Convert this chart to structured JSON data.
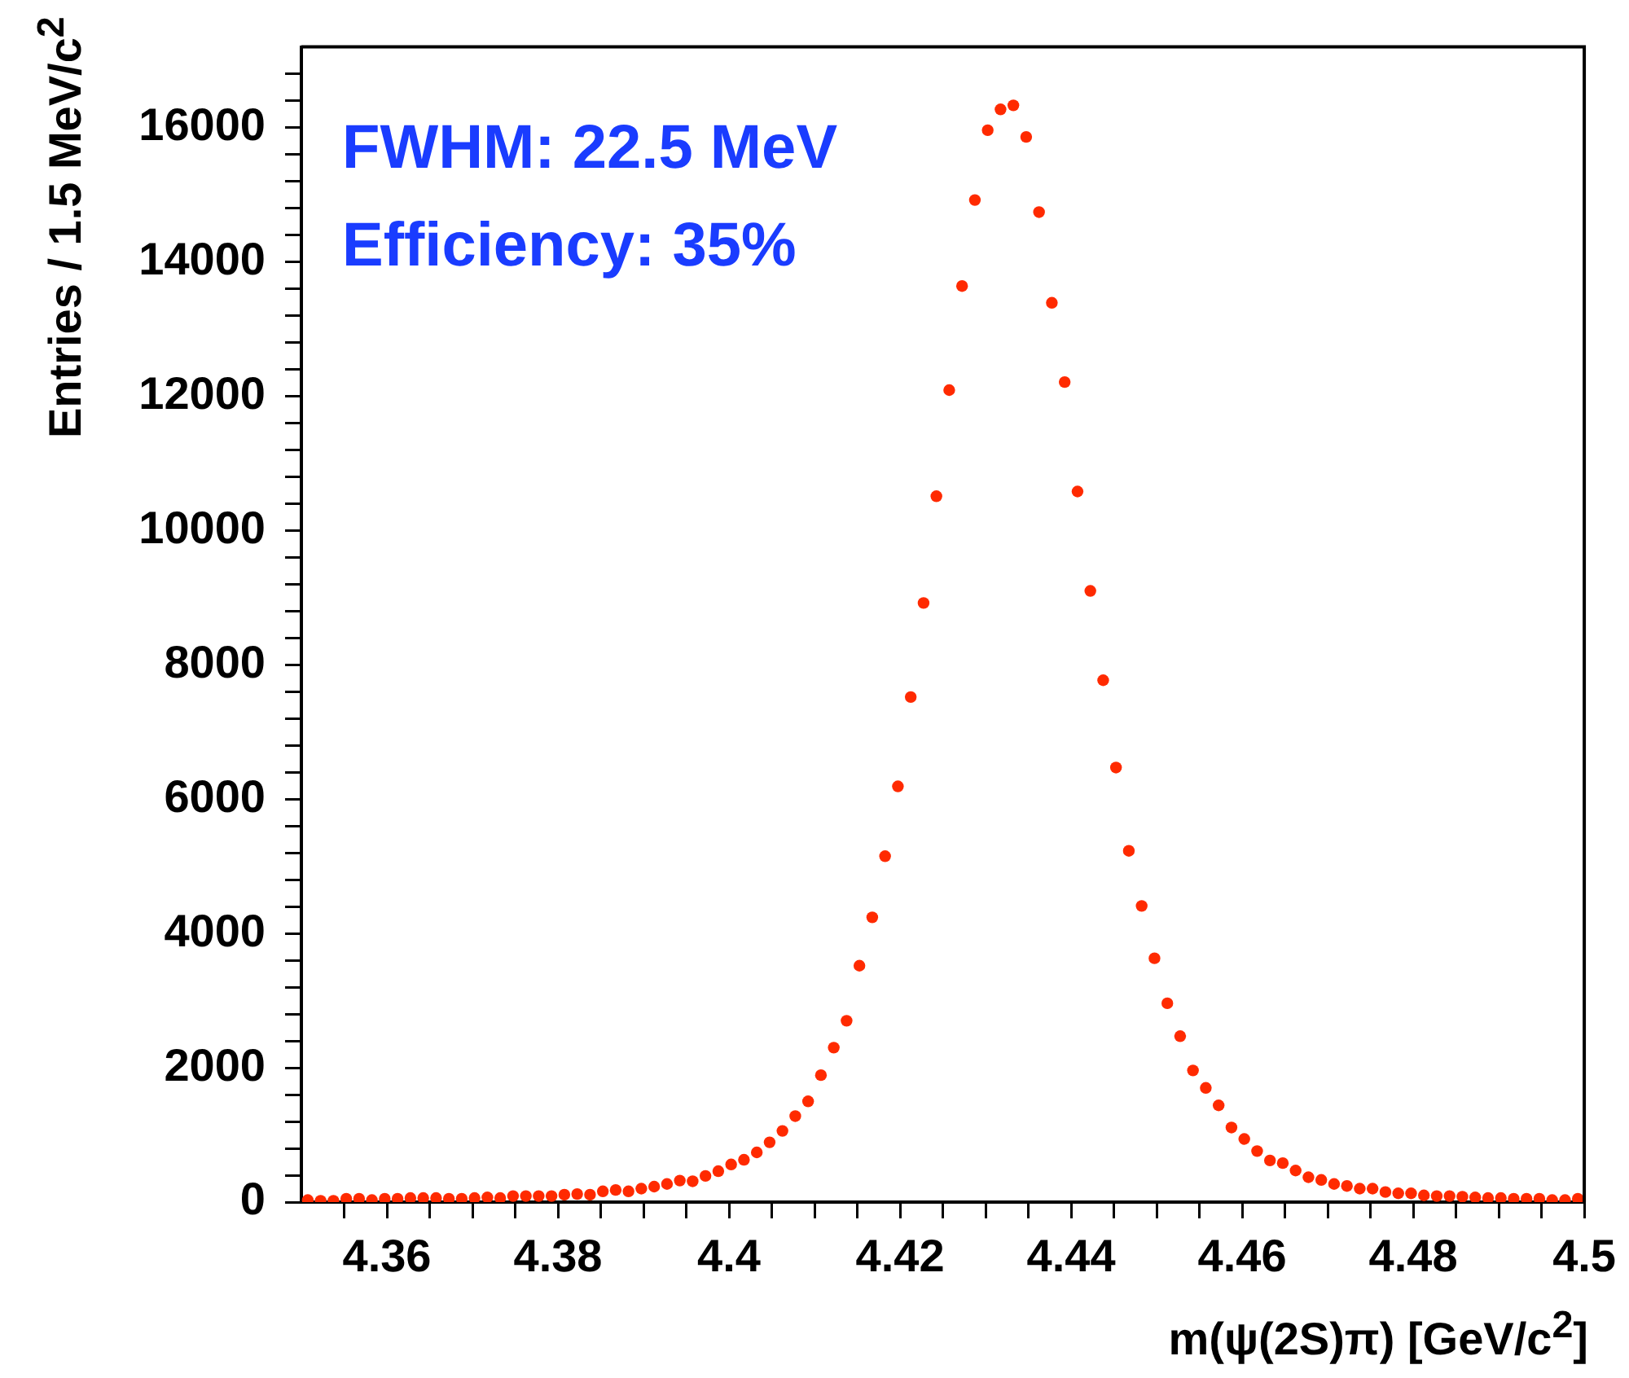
{
  "chart_data": {
    "type": "scatter",
    "xlabel": "m(ψ(2S)π) [GeV/c$^{2}$]",
    "ylabel": "Entries / 1.5 MeV/c$^{2}$",
    "annotations": [
      "FWHM: 22.5 MeV",
      "Efficiency: 35%"
    ],
    "marker": "circle",
    "legend": false,
    "grid": false,
    "xlim": [
      4.35,
      4.5
    ],
    "ylim": [
      0,
      17200
    ],
    "xticks": [
      {
        "value": 4.355,
        "label": null
      },
      4.36,
      {
        "value": 4.365,
        "label": null
      },
      {
        "value": 4.37,
        "label": null
      },
      {
        "value": 4.375,
        "label": null
      },
      4.38,
      {
        "value": 4.385,
        "label": null
      },
      {
        "value": 4.39,
        "label": null
      },
      {
        "value": 4.395,
        "label": null
      },
      4.4,
      {
        "value": 4.405,
        "label": null
      },
      {
        "value": 4.41,
        "label": null
      },
      {
        "value": 4.415,
        "label": null
      },
      4.42,
      {
        "value": 4.425,
        "label": null
      },
      {
        "value": 4.43,
        "label": null
      },
      {
        "value": 4.435,
        "label": null
      },
      4.44,
      {
        "value": 4.445,
        "label": null
      },
      {
        "value": 4.45,
        "label": null
      },
      {
        "value": 4.455,
        "label": null
      },
      4.46,
      {
        "value": 4.465,
        "label": null
      },
      {
        "value": 4.47,
        "label": null
      },
      {
        "value": 4.475,
        "label": null
      },
      4.48,
      {
        "value": 4.485,
        "label": null
      },
      {
        "value": 4.49,
        "label": null
      },
      {
        "value": 4.495,
        "label": null
      },
      4.5
    ],
    "yticks": [
      0,
      {
        "value": 400,
        "label": null
      },
      {
        "value": 800,
        "label": null
      },
      {
        "value": 1200,
        "label": null
      },
      {
        "value": 1600,
        "label": null
      },
      2000,
      {
        "value": 2400,
        "label": null
      },
      {
        "value": 2800,
        "label": null
      },
      {
        "value": 3200,
        "label": null
      },
      {
        "value": 3600,
        "label": null
      },
      4000,
      {
        "value": 4400,
        "label": null
      },
      {
        "value": 4800,
        "label": null
      },
      {
        "value": 5200,
        "label": null
      },
      {
        "value": 5600,
        "label": null
      },
      6000,
      {
        "value": 6400,
        "label": null
      },
      {
        "value": 6800,
        "label": null
      },
      {
        "value": 7200,
        "label": null
      },
      {
        "value": 7600,
        "label": null
      },
      8000,
      {
        "value": 8400,
        "label": null
      },
      {
        "value": 8800,
        "label": null
      },
      {
        "value": 9200,
        "label": null
      },
      {
        "value": 9600,
        "label": null
      },
      10000,
      {
        "value": 10400,
        "label": null
      },
      {
        "value": 10800,
        "label": null
      },
      {
        "value": 11200,
        "label": null
      },
      {
        "value": 11600,
        "label": null
      },
      12000,
      {
        "value": 12400,
        "label": null
      },
      {
        "value": 12800,
        "label": null
      },
      {
        "value": 13200,
        "label": null
      },
      {
        "value": 13600,
        "label": null
      },
      14000,
      {
        "value": 14400,
        "label": null
      },
      {
        "value": 14800,
        "label": null
      },
      {
        "value": 15200,
        "label": null
      },
      {
        "value": 15600,
        "label": null
      },
      16000,
      {
        "value": 16400,
        "label": null
      },
      {
        "value": 16800,
        "label": null
      }
    ],
    "series": [
      {
        "color": "#ff2a00",
        "x": [
          4.35075,
          4.35225,
          4.35375,
          4.35525,
          4.35675,
          4.35825,
          4.35975,
          4.36125,
          4.36275,
          4.36425,
          4.36575,
          4.36725,
          4.36875,
          4.37025,
          4.37175,
          4.37325,
          4.37475,
          4.37625,
          4.37775,
          4.37925,
          4.38075,
          4.38225,
          4.38375,
          4.38525,
          4.38675,
          4.38825,
          4.38975,
          4.39125,
          4.39275,
          4.39425,
          4.39575,
          4.39725,
          4.39875,
          4.40025,
          4.40175,
          4.40325,
          4.40475,
          4.40625,
          4.40775,
          4.40925,
          4.41075,
          4.41225,
          4.41375,
          4.41525,
          4.41675,
          4.41825,
          4.41975,
          4.42125,
          4.42275,
          4.42425,
          4.42575,
          4.42725,
          4.42875,
          4.43025,
          4.43175,
          4.43325,
          4.43475,
          4.43625,
          4.43775,
          4.43925,
          4.44075,
          4.44225,
          4.44375,
          4.44525,
          4.44675,
          4.44825,
          4.44975,
          4.45125,
          4.45275,
          4.45425,
          4.45575,
          4.45725,
          4.45875,
          4.46025,
          4.46175,
          4.46325,
          4.46475,
          4.46625,
          4.46775,
          4.46925,
          4.47075,
          4.47225,
          4.47375,
          4.47525,
          4.47675,
          4.47825,
          4.47975,
          4.48125,
          4.48275,
          4.48425,
          4.48575,
          4.48725,
          4.48875,
          4.49025,
          4.49175,
          4.49325,
          4.49475,
          4.49625,
          4.49775,
          4.49925
        ],
        "values": [
          30,
          20,
          20,
          50,
          50,
          30,
          50,
          50,
          60,
          60,
          60,
          50,
          50,
          60,
          70,
          60,
          90,
          90,
          90,
          90,
          110,
          120,
          110,
          160,
          180,
          160,
          200,
          230,
          270,
          320,
          310,
          390,
          460,
          560,
          630,
          740,
          890,
          1060,
          1280,
          1500,
          1890,
          2300,
          2700,
          3520,
          4240,
          5150,
          6190,
          7520,
          8920,
          10510,
          12090,
          13640,
          14920,
          15960,
          16270,
          16330,
          15860,
          14740,
          13390,
          12210,
          10580,
          9100,
          7770,
          6470,
          5230,
          4410,
          3630,
          2960,
          2470,
          1960,
          1700,
          1440,
          1110,
          940,
          760,
          620,
          580,
          470,
          370,
          330,
          270,
          240,
          200,
          200,
          150,
          130,
          130,
          100,
          90,
          90,
          80,
          70,
          60,
          60,
          50,
          50,
          50,
          30,
          30,
          50
        ]
      }
    ]
  }
}
